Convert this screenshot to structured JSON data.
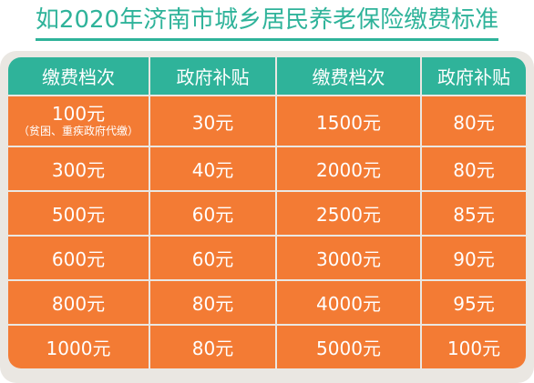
{
  "title": "如2020年济南市城乡居民养老保险缴费标准",
  "headers": [
    "缴费档次",
    "政府补贴",
    "缴费档次",
    "政府补贴"
  ],
  "rows": [
    {
      "a": "100元",
      "a_note": "（贫困、重疾政府代缴）",
      "b": "30元",
      "c": "1500元",
      "d": "80元"
    },
    {
      "a": "300元",
      "b": "40元",
      "c": "2000元",
      "d": "80元"
    },
    {
      "a": "500元",
      "b": "60元",
      "c": "2500元",
      "d": "85元"
    },
    {
      "a": "600元",
      "b": "60元",
      "c": "3000元",
      "d": "90元"
    },
    {
      "a": "800元",
      "b": "80元",
      "c": "4000元",
      "d": "95元"
    },
    {
      "a": "1000元",
      "b": "80元",
      "c": "5000元",
      "d": "100元"
    }
  ],
  "colors": {
    "header_bg": "#2fb39a",
    "cell_bg": "#f37b34",
    "title": "#2fb39a",
    "panel": "#eae7e2"
  }
}
